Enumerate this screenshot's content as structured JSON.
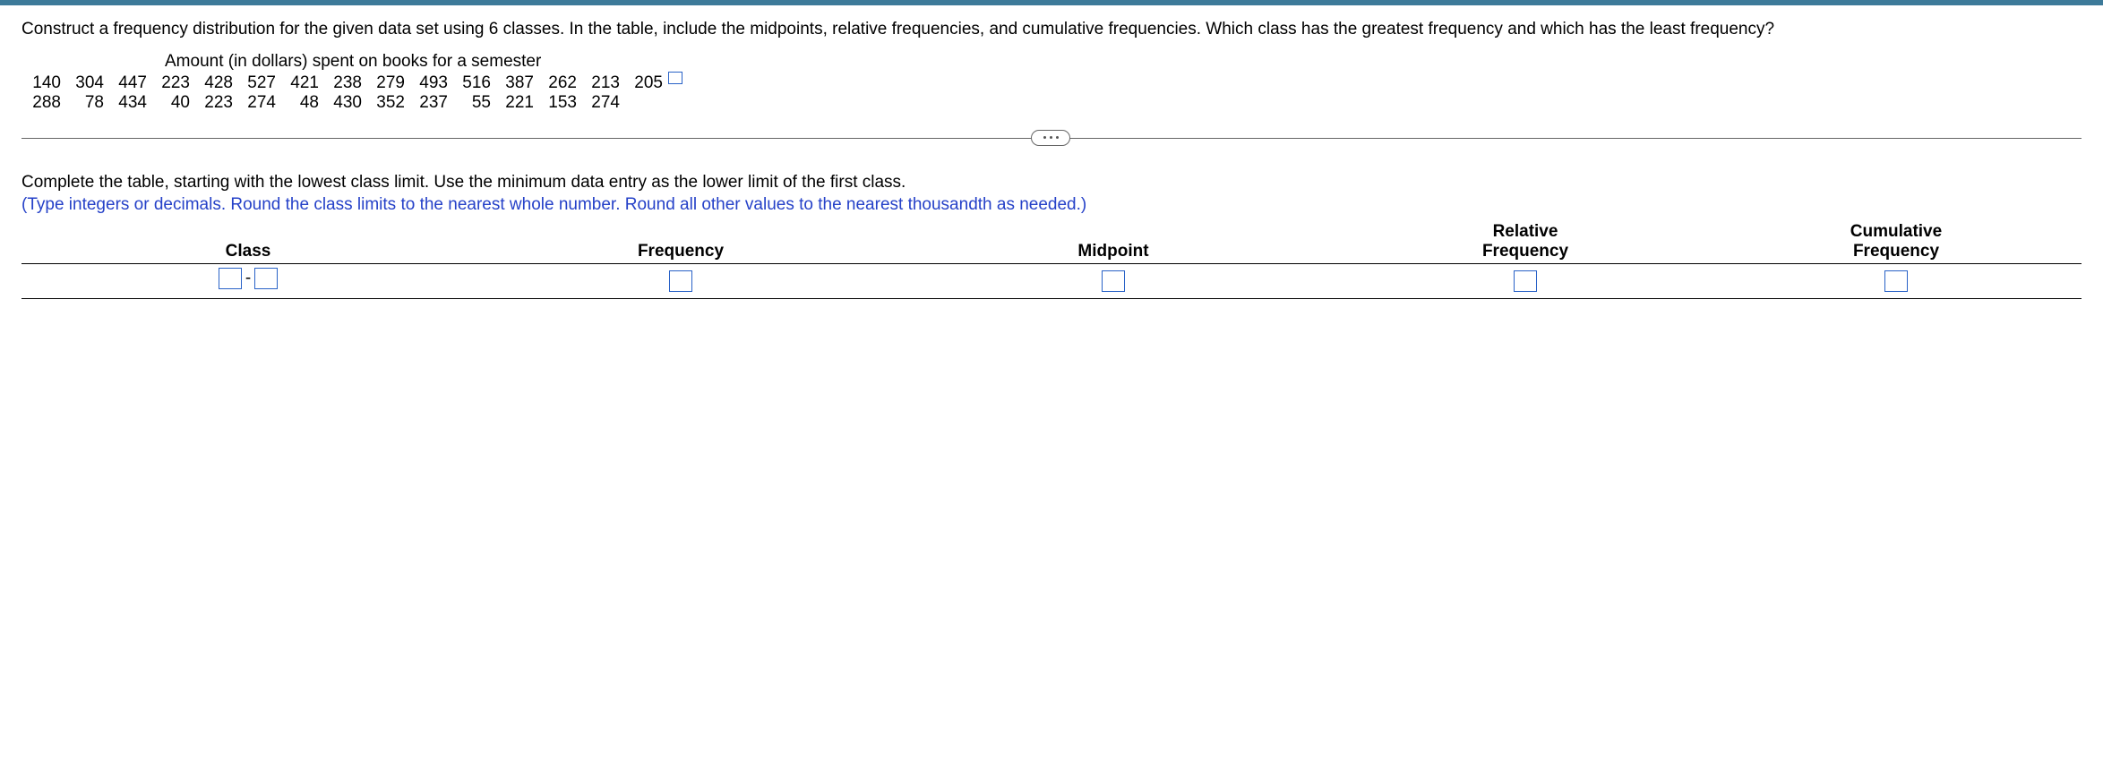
{
  "question": {
    "prompt": "Construct a frequency distribution for the given data set using 6 classes. In the table, include the midpoints, relative frequencies, and cumulative frequencies. Which class has the greatest frequency and which has the least frequency?",
    "data_title": "Amount (in dollars) spent on books for a semester",
    "data_rows": [
      [
        "140",
        "304",
        "447",
        "223",
        "428",
        "527",
        "421",
        "238",
        "279",
        "493",
        "516",
        "387",
        "262",
        "213",
        "205"
      ],
      [
        "288",
        "78",
        "434",
        "40",
        "223",
        "274",
        "48",
        "430",
        "352",
        "237",
        "55",
        "221",
        "153",
        "274",
        ""
      ]
    ]
  },
  "instructions": {
    "line1": "Complete the table, starting with the lowest class limit. Use the minimum data entry as the lower limit of the first class.",
    "hint": "(Type integers or decimals. Round the class limits to the nearest whole number. Round all other values to the nearest thousandth as needed.)"
  },
  "table": {
    "headers": {
      "class": "Class",
      "frequency": "Frequency",
      "midpoint": "Midpoint",
      "relative_line1": "Relative",
      "relative_line2": "Frequency",
      "cumulative_line1": "Cumulative",
      "cumulative_line2": "Frequency"
    },
    "row1": {
      "class_low": "",
      "class_high": "",
      "dash": "-",
      "frequency": "",
      "midpoint": "",
      "relative": "",
      "cumulative": ""
    }
  },
  "colors": {
    "topbar": "#3d7a99",
    "hint_text": "#2541c8",
    "input_border": "#2962c7",
    "rule": "#000000"
  }
}
